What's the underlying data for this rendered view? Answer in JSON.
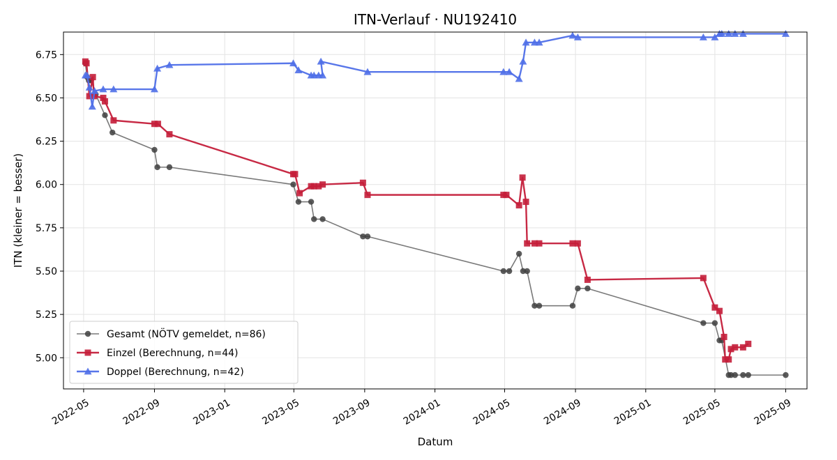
{
  "chart_data": {
    "type": "line",
    "title": "ITN-Verlauf · NU192410",
    "xlabel": "Datum",
    "ylabel": "ITN  (kleiner = besser)",
    "xlim": [
      "2022-03-27",
      "2025-10-08"
    ],
    "ylim": [
      4.82,
      6.88
    ],
    "x_ticks": [
      "2022-05-01",
      "2022-09-01",
      "2023-01-01",
      "2023-05-01",
      "2023-09-01",
      "2024-01-01",
      "2024-05-01",
      "2024-09-01",
      "2025-01-01",
      "2025-05-01",
      "2025-09-01"
    ],
    "x_tick_labels": [
      "2022-05",
      "2022-09",
      "2023-01",
      "2023-05",
      "2023-09",
      "2024-01",
      "2024-05",
      "2024-09",
      "2025-01",
      "2025-05",
      "2025-09"
    ],
    "y_ticks": [
      5.0,
      5.25,
      5.5,
      5.75,
      6.0,
      6.25,
      6.5,
      6.75
    ],
    "y_tick_labels": [
      "5.00",
      "5.25",
      "5.50",
      "5.75",
      "6.00",
      "6.25",
      "6.50",
      "6.75"
    ],
    "grid": true,
    "legend_position": "lower-left",
    "series": [
      {
        "name": "Gesamt (NÖTV gemeldet, n=86)",
        "color": "#404040",
        "marker": "circle",
        "points": [
          [
            "2022-05-04",
            6.7
          ],
          [
            "2022-05-07",
            6.62
          ],
          [
            "2022-05-10",
            6.6
          ],
          [
            "2022-05-14",
            6.6
          ],
          [
            "2022-05-22",
            6.52
          ],
          [
            "2022-06-07",
            6.4
          ],
          [
            "2022-06-20",
            6.3
          ],
          [
            "2022-09-01",
            6.2
          ],
          [
            "2022-09-06",
            6.1
          ],
          [
            "2022-09-27",
            6.1
          ],
          [
            "2023-04-30",
            6.0
          ],
          [
            "2023-05-09",
            5.9
          ],
          [
            "2023-05-31",
            5.9
          ],
          [
            "2023-06-05",
            5.8
          ],
          [
            "2023-06-20",
            5.8
          ],
          [
            "2023-08-29",
            5.7
          ],
          [
            "2023-09-06",
            5.7
          ],
          [
            "2024-04-29",
            5.5
          ],
          [
            "2024-05-09",
            5.5
          ],
          [
            "2024-05-26",
            5.6
          ],
          [
            "2024-06-02",
            5.5
          ],
          [
            "2024-06-09",
            5.5
          ],
          [
            "2024-06-22",
            5.3
          ],
          [
            "2024-06-30",
            5.3
          ],
          [
            "2024-08-27",
            5.3
          ],
          [
            "2024-09-05",
            5.4
          ],
          [
            "2024-09-22",
            5.4
          ],
          [
            "2025-04-11",
            5.2
          ],
          [
            "2025-05-01",
            5.2
          ],
          [
            "2025-05-09",
            5.1
          ],
          [
            "2025-05-13",
            5.1
          ],
          [
            "2025-05-25",
            4.9
          ],
          [
            "2025-05-29",
            4.9
          ],
          [
            "2025-06-05",
            4.9
          ],
          [
            "2025-06-19",
            4.9
          ],
          [
            "2025-06-28",
            4.9
          ],
          [
            "2025-09-01",
            4.9
          ]
        ]
      },
      {
        "name": "Einzel (Berechnung, n=44)",
        "color": "#c41e3a",
        "marker": "square",
        "points": [
          [
            "2022-05-04",
            6.71
          ],
          [
            "2022-05-06",
            6.7
          ],
          [
            "2022-05-11",
            6.51
          ],
          [
            "2022-05-17",
            6.62
          ],
          [
            "2022-05-19",
            6.51
          ],
          [
            "2022-06-04",
            6.5
          ],
          [
            "2022-06-07",
            6.48
          ],
          [
            "2022-06-22",
            6.37
          ],
          [
            "2022-09-01",
            6.35
          ],
          [
            "2022-09-07",
            6.35
          ],
          [
            "2022-09-27",
            6.29
          ],
          [
            "2023-04-30",
            6.06
          ],
          [
            "2023-05-03",
            6.06
          ],
          [
            "2023-05-11",
            5.95
          ],
          [
            "2023-05-31",
            5.99
          ],
          [
            "2023-06-05",
            5.99
          ],
          [
            "2023-06-13",
            5.99
          ],
          [
            "2023-06-20",
            6.0
          ],
          [
            "2023-08-29",
            6.01
          ],
          [
            "2023-09-06",
            5.94
          ],
          [
            "2024-04-29",
            5.94
          ],
          [
            "2024-05-04",
            5.94
          ],
          [
            "2024-05-26",
            5.88
          ],
          [
            "2024-06-01",
            6.04
          ],
          [
            "2024-06-07",
            5.9
          ],
          [
            "2024-06-09",
            5.66
          ],
          [
            "2024-06-22",
            5.66
          ],
          [
            "2024-06-30",
            5.66
          ],
          [
            "2024-08-27",
            5.66
          ],
          [
            "2024-09-05",
            5.66
          ],
          [
            "2024-09-22",
            5.45
          ],
          [
            "2025-04-11",
            5.46
          ],
          [
            "2025-05-01",
            5.29
          ],
          [
            "2025-05-09",
            5.27
          ],
          [
            "2025-05-17",
            5.12
          ],
          [
            "2025-05-19",
            4.99
          ],
          [
            "2025-05-25",
            4.99
          ],
          [
            "2025-05-29",
            5.05
          ],
          [
            "2025-06-05",
            5.06
          ],
          [
            "2025-06-19",
            5.06
          ],
          [
            "2025-06-28",
            5.08
          ]
        ]
      },
      {
        "name": "Doppel (Berechnung, n=42)",
        "color": "#4f6fe8",
        "marker": "triangle",
        "points": [
          [
            "2022-05-04",
            6.63
          ],
          [
            "2022-05-07",
            6.63
          ],
          [
            "2022-05-11",
            6.56
          ],
          [
            "2022-05-16",
            6.45
          ],
          [
            "2022-05-20",
            6.54
          ],
          [
            "2022-06-04",
            6.55
          ],
          [
            "2022-06-22",
            6.55
          ],
          [
            "2022-09-01",
            6.55
          ],
          [
            "2022-09-06",
            6.67
          ],
          [
            "2022-09-27",
            6.69
          ],
          [
            "2023-04-30",
            6.7
          ],
          [
            "2023-05-09",
            6.66
          ],
          [
            "2023-05-31",
            6.63
          ],
          [
            "2023-06-05",
            6.63
          ],
          [
            "2023-06-13",
            6.63
          ],
          [
            "2023-06-20",
            6.63
          ],
          [
            "2023-06-17",
            6.71
          ],
          [
            "2023-09-06",
            6.65
          ],
          [
            "2024-04-29",
            6.65
          ],
          [
            "2024-05-09",
            6.65
          ],
          [
            "2024-05-26",
            6.61
          ],
          [
            "2024-06-02",
            6.71
          ],
          [
            "2024-06-07",
            6.82
          ],
          [
            "2024-06-22",
            6.82
          ],
          [
            "2024-06-30",
            6.82
          ],
          [
            "2024-08-27",
            6.86
          ],
          [
            "2024-09-05",
            6.85
          ],
          [
            "2025-04-11",
            6.85
          ],
          [
            "2025-05-01",
            6.85
          ],
          [
            "2025-05-09",
            6.87
          ],
          [
            "2025-05-13",
            6.87
          ],
          [
            "2025-05-25",
            6.87
          ],
          [
            "2025-06-05",
            6.87
          ],
          [
            "2025-06-19",
            6.87
          ],
          [
            "2025-09-01",
            6.87
          ]
        ]
      }
    ]
  }
}
